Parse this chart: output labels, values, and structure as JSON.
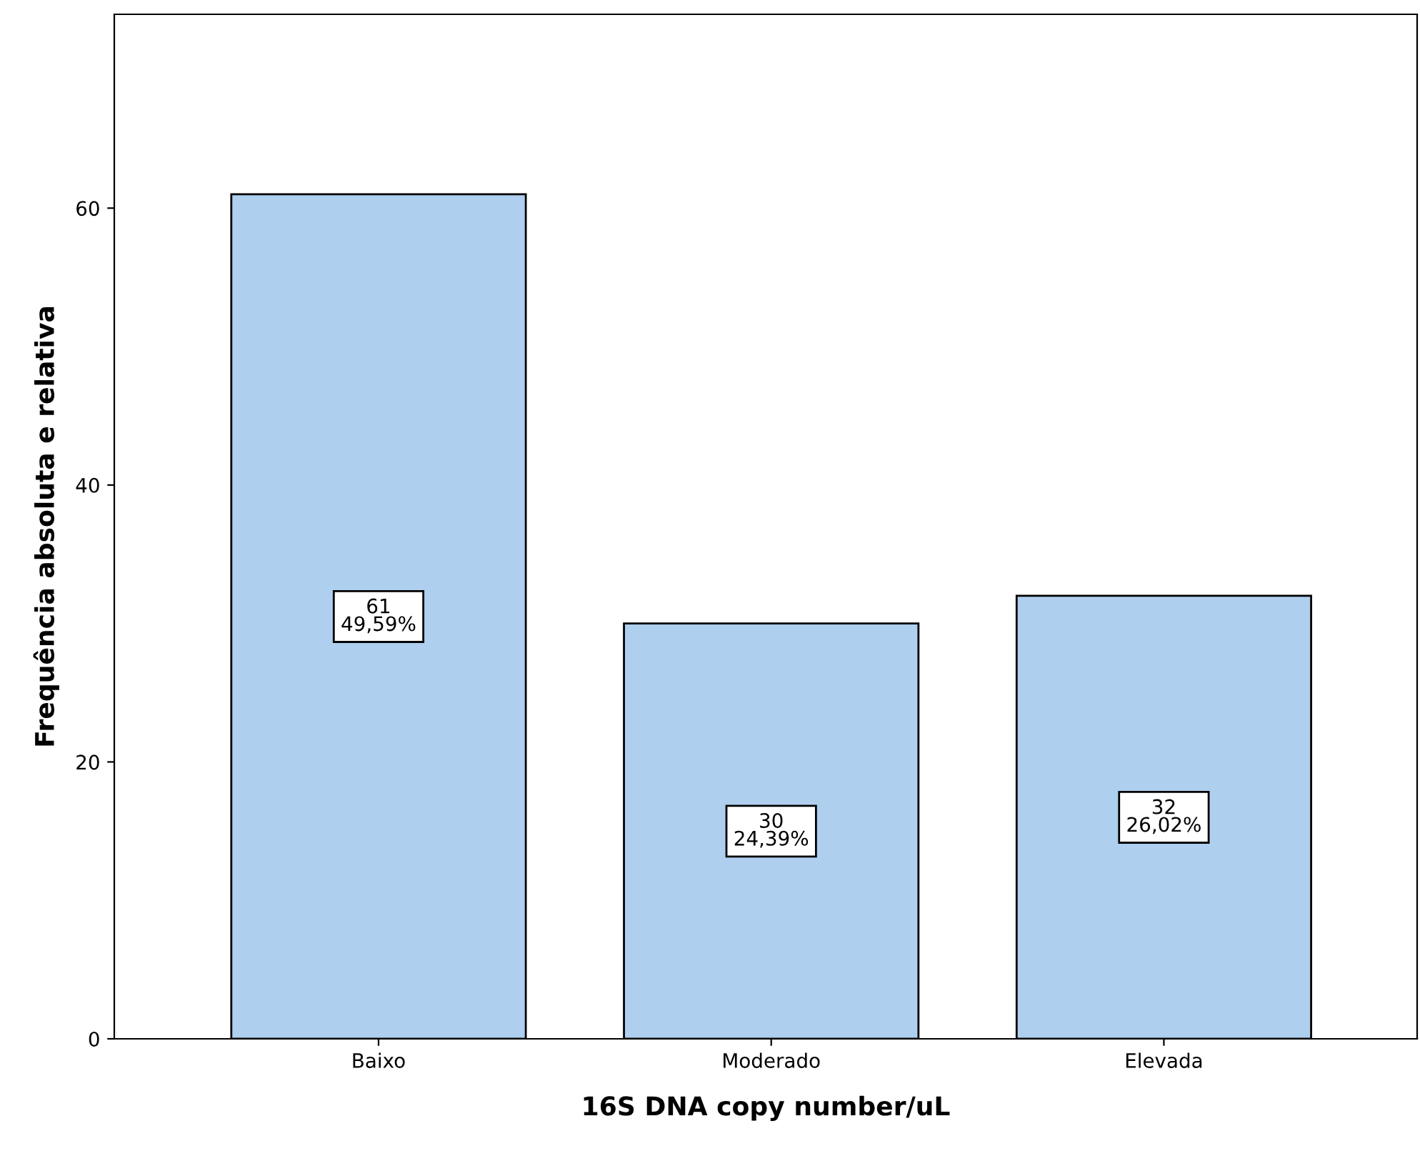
{
  "chart_data": {
    "type": "bar",
    "xlabel": "16S DNA copy number/uL",
    "ylabel": "Frequência absoluta e relativa",
    "categories": [
      "Baixo",
      "Moderado",
      "Elevada"
    ],
    "values": [
      61,
      30,
      32
    ],
    "value_labels": [
      "61\n49,59%",
      "30\n24,39%",
      "32\n26,02%"
    ],
    "color": "#aecfee",
    "ylim": [
      0,
      74
    ],
    "yticks": [
      0,
      20,
      40,
      60
    ],
    "grid": false,
    "legend": false
  }
}
